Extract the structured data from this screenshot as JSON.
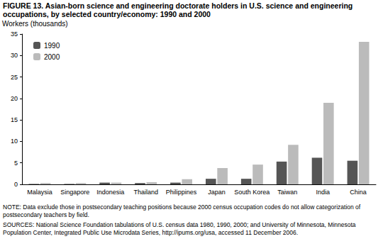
{
  "chart_data": {
    "type": "bar",
    "title": "FIGURE 13. Asian-born science and engineering doctorate holders in U.S. science and engineering occupations, by selected country/economy: 1990 and 2000",
    "y_label": "Workers (thousands)",
    "categories": [
      "Malaysia",
      "Singapore",
      "Indonesia",
      "Thailand",
      "Philippines",
      "Japan",
      "South Korea",
      "Taiwan",
      "India",
      "China"
    ],
    "series": [
      {
        "name": "1990",
        "color": "#555555",
        "values": [
          0.1,
          0.1,
          0.4,
          0.3,
          0.4,
          1.3,
          1.3,
          5.3,
          6.2,
          5.5
        ]
      },
      {
        "name": "2000",
        "color": "#bbbbbb",
        "values": [
          0.3,
          0.3,
          0.4,
          0.5,
          1.2,
          3.8,
          4.6,
          9.2,
          19.0,
          33.2
        ]
      }
    ],
    "ylim": [
      0,
      35
    ],
    "yticks": [
      0,
      5,
      10,
      15,
      20,
      25,
      30,
      35
    ],
    "grid": false,
    "legend": "upper left",
    "notes": [
      "NOTE: Data exclude those in postsecondary teaching positions because 2000 census occupation codes do not allow categorization of postsecondary teachers by field.",
      "SOURCES: National Science Foundation tabulations of U.S. census data 1980, 1990, 2000; and University of Minnesota, Minnesota Population Center, Integrated Public Use Microdata Series, http://ipums.org/usa, accessed 11 December 2006."
    ]
  }
}
